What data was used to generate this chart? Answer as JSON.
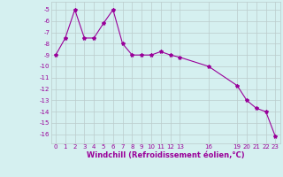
{
  "x_full": [
    0,
    1,
    2,
    3,
    4,
    5,
    6,
    7,
    8,
    9,
    10,
    11,
    12,
    13,
    16,
    19,
    20,
    21,
    22,
    23
  ],
  "y_full": [
    -9,
    -7.5,
    -5,
    -7.5,
    -7.5,
    -6.2,
    -5,
    -8,
    -9,
    -9,
    -9,
    -8.7,
    -9,
    -9.2,
    -10,
    -11.7,
    -13,
    -13.7,
    -14,
    -16.2
  ],
  "xticks": [
    0,
    1,
    2,
    3,
    4,
    5,
    6,
    7,
    8,
    9,
    10,
    11,
    12,
    13,
    16,
    19,
    20,
    21,
    22,
    23
  ],
  "xtick_labels": [
    "0",
    "1",
    "2",
    "3",
    "4",
    "5",
    "6",
    "7",
    "8",
    "9",
    "10",
    "11",
    "12",
    "13",
    "16",
    "19",
    "20",
    "21",
    "22",
    "23"
  ],
  "yticks": [
    -5,
    -6,
    -7,
    -8,
    -9,
    -10,
    -11,
    -12,
    -13,
    -14,
    -15,
    -16
  ],
  "ytick_labels": [
    "-5",
    "-6",
    "-7",
    "-8",
    "-9",
    "-10",
    "-11",
    "-12",
    "-13",
    "-14",
    "-15",
    "-16"
  ],
  "ylim": [
    -16.8,
    -4.3
  ],
  "xlim": [
    -0.5,
    23.5
  ],
  "line_color": "#990099",
  "marker": "*",
  "bg_color": "#d5f0f0",
  "grid_color": "#bbcccc",
  "xlabel": "Windchill (Refroidissement éolien,°C)",
  "xlabel_color": "#990099"
}
